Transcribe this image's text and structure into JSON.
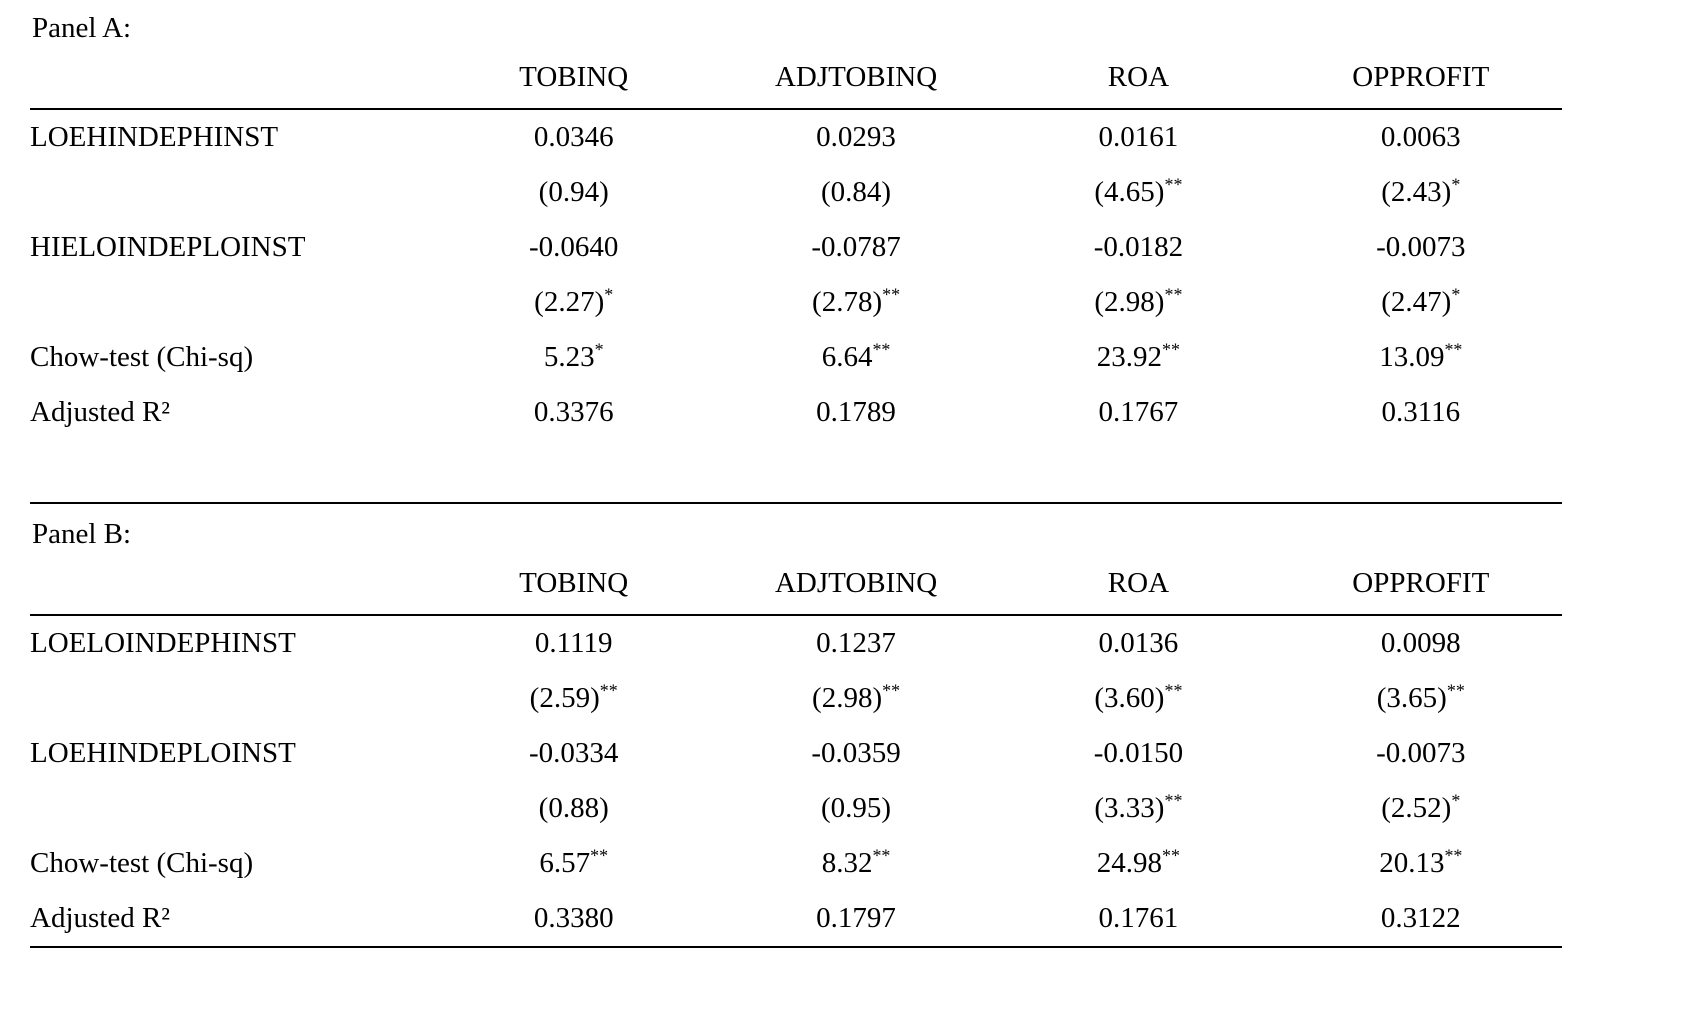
{
  "panels": [
    {
      "title": "Panel A:",
      "columns": [
        "TOBINQ",
        "ADJTOBINQ",
        "ROA",
        "OPPROFIT"
      ],
      "rows": [
        {
          "label": "LOEHINDEPHINST",
          "cells": [
            {
              "v": "0.0346"
            },
            {
              "v": "0.0293"
            },
            {
              "v": "0.0161"
            },
            {
              "v": "0.0063"
            }
          ]
        },
        {
          "label": "",
          "cells": [
            {
              "v": "(0.94)"
            },
            {
              "v": "(0.84)"
            },
            {
              "v": "(4.65)",
              "sup": "**"
            },
            {
              "v": "(2.43)",
              "sup": "*"
            }
          ]
        },
        {
          "label": "HIELOINDEPLOINST",
          "cells": [
            {
              "v": "-0.0640"
            },
            {
              "v": "-0.0787"
            },
            {
              "v": "-0.0182"
            },
            {
              "v": "-0.0073"
            }
          ]
        },
        {
          "label": "",
          "cells": [
            {
              "v": "(2.27)",
              "sup": "*"
            },
            {
              "v": "(2.78)",
              "sup": "**"
            },
            {
              "v": "(2.98)",
              "sup": "**"
            },
            {
              "v": "(2.47)",
              "sup": "*"
            }
          ]
        },
        {
          "label": "Chow-test (Chi-sq)",
          "cells": [
            {
              "v": "5.23",
              "sup": "*"
            },
            {
              "v": "6.64",
              "sup": "**"
            },
            {
              "v": "23.92",
              "sup": "**"
            },
            {
              "v": "13.09",
              "sup": "**"
            }
          ]
        },
        {
          "label": "Adjusted R²",
          "cells": [
            {
              "v": "0.3376"
            },
            {
              "v": "0.1789"
            },
            {
              "v": "0.1767"
            },
            {
              "v": "0.3116"
            }
          ]
        }
      ]
    },
    {
      "title": "Panel B:",
      "columns": [
        "TOBINQ",
        "ADJTOBINQ",
        "ROA",
        "OPPROFIT"
      ],
      "rows": [
        {
          "label": "LOELOINDEPHINST",
          "cells": [
            {
              "v": "0.1119"
            },
            {
              "v": "0.1237"
            },
            {
              "v": "0.0136"
            },
            {
              "v": "0.0098"
            }
          ]
        },
        {
          "label": "",
          "cells": [
            {
              "v": "(2.59)",
              "sup": "**"
            },
            {
              "v": "(2.98)",
              "sup": "**"
            },
            {
              "v": "(3.60)",
              "sup": "**"
            },
            {
              "v": "(3.65)",
              "sup": "**"
            }
          ]
        },
        {
          "label": "LOEHINDEPLOINST",
          "cells": [
            {
              "v": "-0.0334"
            },
            {
              "v": "-0.0359"
            },
            {
              "v": "-0.0150"
            },
            {
              "v": "-0.0073"
            }
          ]
        },
        {
          "label": "",
          "cells": [
            {
              "v": "(0.88)"
            },
            {
              "v": "(0.95)"
            },
            {
              "v": "(3.33)",
              "sup": "**"
            },
            {
              "v": "(2.52)",
              "sup": "*"
            }
          ]
        },
        {
          "label": "Chow-test (Chi-sq)",
          "cells": [
            {
              "v": "6.57",
              "sup": "**"
            },
            {
              "v": "8.32",
              "sup": "**"
            },
            {
              "v": "24.98",
              "sup": "**"
            },
            {
              "v": "20.13",
              "sup": "**"
            }
          ]
        },
        {
          "label": "Adjusted R²",
          "cells": [
            {
              "v": "0.3380"
            },
            {
              "v": "0.1797"
            },
            {
              "v": "0.1761"
            },
            {
              "v": "0.3122"
            }
          ]
        }
      ]
    }
  ]
}
